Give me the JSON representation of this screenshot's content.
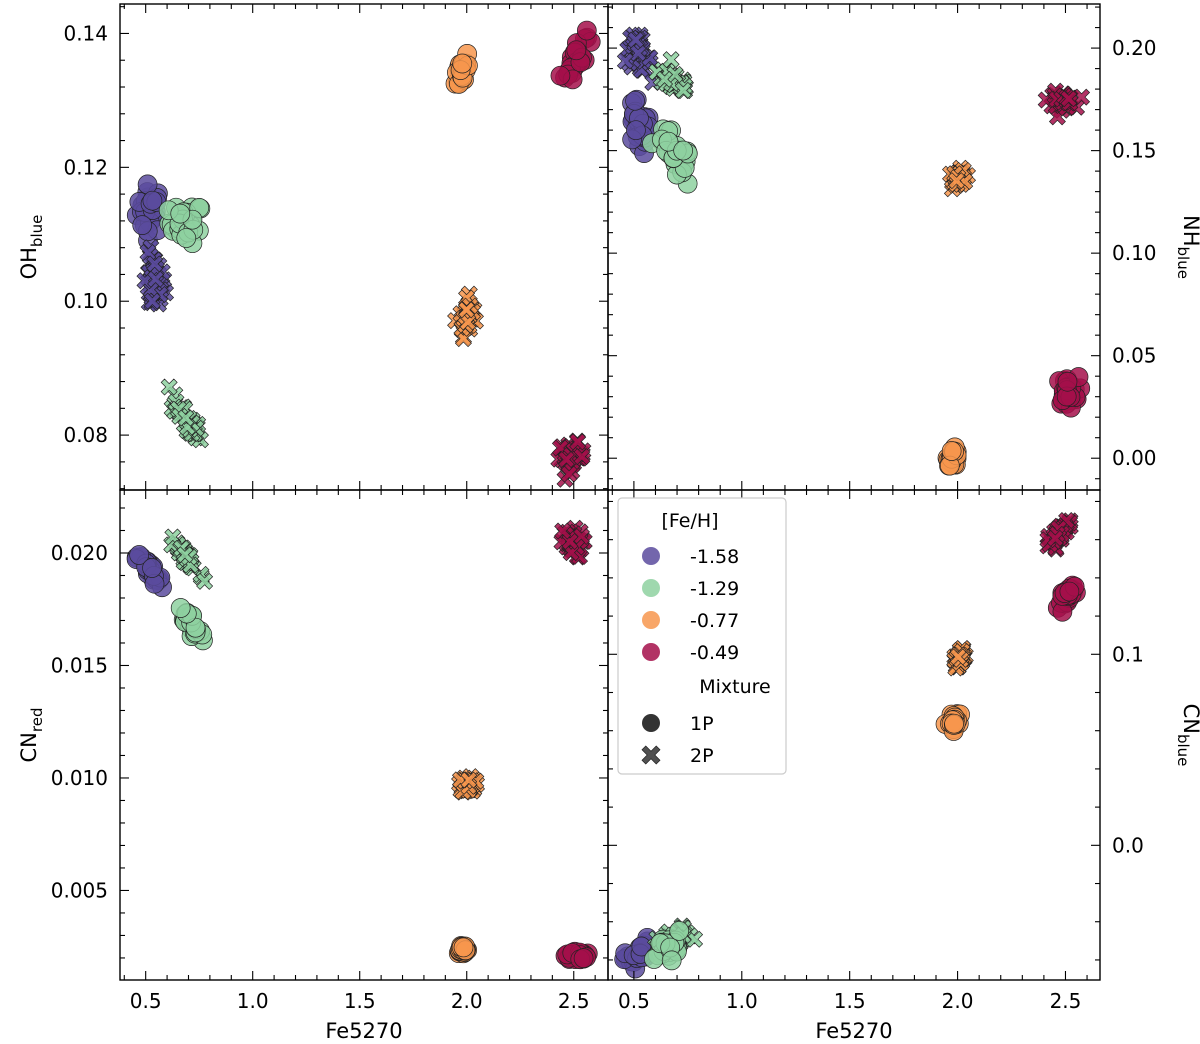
{
  "colors": {
    "m158": "#5b4b9e",
    "m129": "#8ed1a0",
    "m077": "#f7964e",
    "m049": "#a50f4a",
    "edge": "#222222"
  },
  "chart_data": [
    {
      "type": "scatter",
      "position": "top-left",
      "xlabel": "",
      "ylabel_main": "OH",
      "ylabel_sub": "blue",
      "xlim": [
        0.38,
        2.66
      ],
      "ylim": [
        0.0718,
        0.1444
      ],
      "yticks": [
        0.08,
        0.1,
        0.12,
        0.14
      ],
      "ytick_labels": [
        "0.08",
        "0.10",
        "0.12",
        "0.14"
      ],
      "ytick_side": "left",
      "series": [
        {
          "mix": "1P",
          "group": "-1.58",
          "x": 0.52,
          "y": 0.1138,
          "sx": 0.03,
          "sy": 0.0018,
          "slope": 0
        },
        {
          "mix": "1P",
          "group": "-1.29",
          "x": 0.69,
          "y": 0.1117,
          "sx": 0.04,
          "sy": 0.0015,
          "slope": 0
        },
        {
          "mix": "2P",
          "group": "-1.58",
          "x": 0.54,
          "y": 0.1025,
          "sx": 0.025,
          "sy": 0.0022,
          "slope": 0
        },
        {
          "mix": "2P",
          "group": "-1.29",
          "x": 0.69,
          "y": 0.0825,
          "sx": 0.035,
          "sy": 0.001,
          "slope": -0.045
        },
        {
          "mix": "1P",
          "group": "-0.77",
          "x": 1.98,
          "y": 0.1345,
          "sx": 0.015,
          "sy": 0.0012,
          "slope": 0.03
        },
        {
          "mix": "2P",
          "group": "-0.77",
          "x": 2.0,
          "y": 0.0978,
          "sx": 0.015,
          "sy": 0.0012,
          "slope": 0.04
        },
        {
          "mix": "1P",
          "group": "-0.49",
          "x": 2.51,
          "y": 0.1363,
          "sx": 0.025,
          "sy": 0.0012,
          "slope": 0.04
        },
        {
          "mix": "2P",
          "group": "-0.49",
          "x": 2.49,
          "y": 0.0768,
          "sx": 0.03,
          "sy": 0.001,
          "slope": 0
        }
      ]
    },
    {
      "type": "scatter",
      "position": "top-right",
      "xlabel": "",
      "ylabel_main": "NH",
      "ylabel_sub": "blue",
      "xlim": [
        0.38,
        2.66
      ],
      "ylim": [
        -0.0155,
        0.2215
      ],
      "yticks": [
        0.0,
        0.05,
        0.1,
        0.15,
        0.2
      ],
      "ytick_labels": [
        "0.00",
        "0.05",
        "0.10",
        "0.15",
        "0.20"
      ],
      "ytick_side": "right",
      "series": [
        {
          "mix": "2P",
          "group": "-1.58",
          "x": 0.52,
          "y": 0.1975,
          "sx": 0.03,
          "sy": 0.004,
          "slope": -0.06
        },
        {
          "mix": "2P",
          "group": "-1.29",
          "x": 0.69,
          "y": 0.1835,
          "sx": 0.04,
          "sy": 0.003,
          "slope": -0.06
        },
        {
          "mix": "1P",
          "group": "-1.58",
          "x": 0.52,
          "y": 0.1615,
          "sx": 0.03,
          "sy": 0.006,
          "slope": -0.1
        },
        {
          "mix": "1P",
          "group": "-1.29",
          "x": 0.69,
          "y": 0.1475,
          "sx": 0.04,
          "sy": 0.005,
          "slope": -0.1
        },
        {
          "mix": "2P",
          "group": "-0.77",
          "x": 2.01,
          "y": 0.1365,
          "sx": 0.015,
          "sy": 0.002,
          "slope": 0
        },
        {
          "mix": "1P",
          "group": "-0.77",
          "x": 1.98,
          "y": 0.0005,
          "sx": 0.012,
          "sy": 0.002,
          "slope": 0
        },
        {
          "mix": "2P",
          "group": "-0.49",
          "x": 2.48,
          "y": 0.1745,
          "sx": 0.03,
          "sy": 0.002,
          "slope": 0
        },
        {
          "mix": "1P",
          "group": "-0.49",
          "x": 2.51,
          "y": 0.0325,
          "sx": 0.025,
          "sy": 0.0035,
          "slope": 0
        }
      ]
    },
    {
      "type": "scatter",
      "position": "bottom-left",
      "xlabel": "Fe5270",
      "ylabel_main": "CN",
      "ylabel_sub": "red",
      "xlim": [
        0.38,
        2.66
      ],
      "ylim": [
        0.00102,
        0.0228
      ],
      "yticks": [
        0.005,
        0.01,
        0.015,
        0.02
      ],
      "ytick_labels": [
        "0.005",
        "0.010",
        "0.015",
        "0.020"
      ],
      "xticks": [
        0.5,
        1.0,
        1.5,
        2.0,
        2.5
      ],
      "xtick_labels": [
        "0.5",
        "1.0",
        "1.5",
        "2.0",
        "2.5"
      ],
      "ytick_side": "left",
      "series": [
        {
          "mix": "1P",
          "group": "-1.58",
          "x": 0.52,
          "y": 0.0192,
          "sx": 0.03,
          "sy": 0.0002,
          "slope": -0.0095
        },
        {
          "mix": "2P",
          "group": "-1.29",
          "x": 0.69,
          "y": 0.0198,
          "sx": 0.04,
          "sy": 0.0002,
          "slope": -0.011
        },
        {
          "mix": "1P",
          "group": "-1.29",
          "x": 0.72,
          "y": 0.0168,
          "sx": 0.03,
          "sy": 0.0002,
          "slope": -0.013
        },
        {
          "mix": "2P",
          "group": "-0.77",
          "x": 2.01,
          "y": 0.0097,
          "sx": 0.015,
          "sy": 0.0002,
          "slope": 0
        },
        {
          "mix": "1P",
          "group": "-0.77",
          "x": 1.98,
          "y": 0.0024,
          "sx": 0.012,
          "sy": 0.0001,
          "slope": 0
        },
        {
          "mix": "2P",
          "group": "-0.49",
          "x": 2.49,
          "y": 0.0204,
          "sx": 0.025,
          "sy": 0.0003,
          "slope": 0
        },
        {
          "mix": "1P",
          "group": "-0.49",
          "x": 2.51,
          "y": 0.0021,
          "sx": 0.025,
          "sy": 0.0001,
          "slope": 0
        }
      ]
    },
    {
      "type": "scatter",
      "position": "bottom-right",
      "xlabel": "Fe5270",
      "ylabel_main": "CN",
      "ylabel_sub": "blue",
      "xlim": [
        0.38,
        2.66
      ],
      "ylim": [
        -0.0705,
        0.186
      ],
      "yticks": [
        0.0,
        0.1
      ],
      "ytick_labels": [
        "0.0",
        "0.1"
      ],
      "xticks": [
        0.5,
        1.0,
        1.5,
        2.0,
        2.5
      ],
      "xtick_labels": [
        "0.5",
        "1.0",
        "1.5",
        "2.0",
        "2.5"
      ],
      "ytick_side": "right",
      "series": [
        {
          "mix": "1P",
          "group": "-1.58",
          "x": 0.52,
          "y": -0.057,
          "sx": 0.03,
          "sy": 0.003,
          "slope": 0.06
        },
        {
          "mix": "2P",
          "group": "-1.29",
          "x": 0.69,
          "y": -0.05,
          "sx": 0.04,
          "sy": 0.003,
          "slope": 0.04
        },
        {
          "mix": "1P",
          "group": "-1.29",
          "x": 0.66,
          "y": -0.053,
          "sx": 0.03,
          "sy": 0.003,
          "slope": 0.04
        },
        {
          "mix": "2P",
          "group": "-0.77",
          "x": 2.01,
          "y": 0.0985,
          "sx": 0.012,
          "sy": 0.002,
          "slope": 0.1
        },
        {
          "mix": "1P",
          "group": "-0.77",
          "x": 1.98,
          "y": 0.0645,
          "sx": 0.012,
          "sy": 0.002,
          "slope": 0.05
        },
        {
          "mix": "2P",
          "group": "-0.49",
          "x": 2.47,
          "y": 0.163,
          "sx": 0.03,
          "sy": 0.002,
          "slope": 0.12
        },
        {
          "mix": "1P",
          "group": "-0.49",
          "x": 2.52,
          "y": 0.132,
          "sx": 0.025,
          "sy": 0.002,
          "slope": 0.12
        }
      ]
    }
  ],
  "legend": {
    "title": "[Fe/H]",
    "entries": [
      {
        "label": "-1.58",
        "color_key": "m158"
      },
      {
        "label": "-1.29",
        "color_key": "m129"
      },
      {
        "label": "-0.77",
        "color_key": "m077"
      },
      {
        "label": "-0.49",
        "color_key": "m049"
      }
    ],
    "mixture_title": "Mixture",
    "mixture_entries": [
      {
        "label": "1P",
        "marker": "circle"
      },
      {
        "label": "2P",
        "marker": "x"
      }
    ],
    "placement": "upper-left of bottom-right panel"
  }
}
